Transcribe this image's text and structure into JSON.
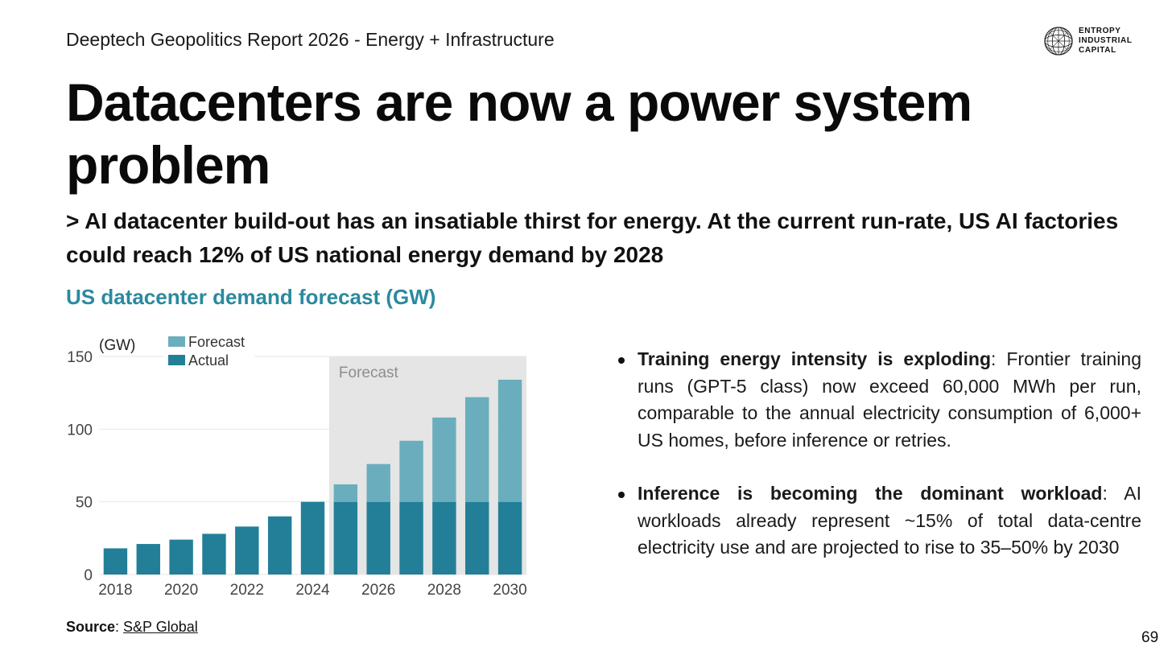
{
  "header": {
    "report_title": "Deeptech Geopolitics Report 2026 - Energy + Infrastructure",
    "logo": {
      "icon": "globe-icon",
      "lines": [
        "ENTROPY",
        "INDUSTRIAL",
        "CAPITAL"
      ]
    }
  },
  "headline": "Datacenters are now a power system problem",
  "subhead": "> AI datacenter build-out has an insatiable thirst for energy. At the current run-rate, US AI factories could reach 12% of US national energy demand by 2028",
  "colors": {
    "accent": "#2a8a9e",
    "actual": "#237f97",
    "forecast": "#6aaebd",
    "forecast_region": "#e4e5e4"
  },
  "chart_data": {
    "type": "bar",
    "title": "US datacenter demand forecast (GW)",
    "ylabel": "(GW)",
    "xlabel": "",
    "ylim": [
      0,
      150
    ],
    "yticks": [
      0,
      50,
      100,
      150
    ],
    "grid": true,
    "forecast_region_label": "Forecast",
    "legend": {
      "placement": "top-left",
      "entries": [
        "Forecast",
        "Actual"
      ]
    },
    "categories": [
      "2018",
      "2019",
      "2020",
      "2021",
      "2022",
      "2023",
      "2024",
      "2025",
      "2026",
      "2027",
      "2028",
      "2029",
      "2030"
    ],
    "xtick_labels": [
      "2018",
      "2020",
      "2022",
      "2024",
      "2026",
      "2028",
      "2030"
    ],
    "forecast_start": "2025",
    "series": [
      {
        "name": "Actual",
        "values": [
          18,
          21,
          24,
          28,
          33,
          40,
          50,
          50,
          50,
          50,
          50,
          50,
          50
        ]
      },
      {
        "name": "Forecast",
        "values": [
          0,
          0,
          0,
          0,
          0,
          0,
          0,
          12,
          26,
          42,
          58,
          72,
          84
        ]
      }
    ]
  },
  "bullets": [
    {
      "head": "Training energy intensity is exploding",
      "body": ": Frontier training runs (GPT-5 class) now exceed 60,000 MWh per run, comparable to the annual electricity consumption of 6,000+ US homes, before inference or retries."
    },
    {
      "head": "Inference is becoming the dominant workload",
      "body": ": AI workloads already represent ~15% of total data-centre electricity use and are projected to rise to 35–50% by 2030"
    }
  ],
  "source": {
    "label": "Source",
    "separator": ": ",
    "link_text": "S&P Global"
  },
  "page_number": "69"
}
